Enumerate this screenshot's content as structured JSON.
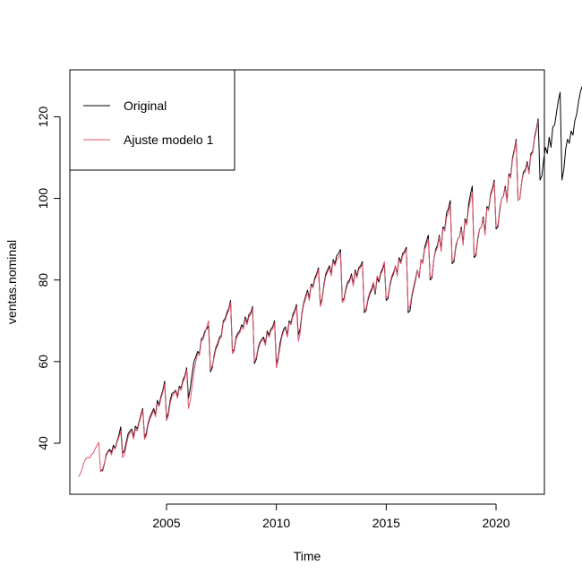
{
  "chart_data": {
    "type": "line",
    "title": "",
    "xlabel": "Time",
    "ylabel": "ventas.nominal",
    "xlim": [
      2000.6,
      2022.2
    ],
    "ylim": [
      27.5,
      131.5
    ],
    "x_ticks": [
      2005,
      2010,
      2015,
      2020
    ],
    "y_ticks": [
      40,
      60,
      80,
      100,
      120
    ],
    "grid": false,
    "legend_position": "top-left",
    "series": [
      {
        "name": "Original",
        "color": "#000000",
        "frequency": 12,
        "start": 2002.0,
        "values": [
          33.5,
          33.2,
          34.8,
          37.2,
          38.0,
          38.5,
          37.8,
          39.5,
          38.8,
          40.5,
          42.0,
          44.0,
          37.5,
          38.2,
          40.2,
          42.3,
          43.0,
          43.5,
          41.5,
          44.2,
          43.5,
          45.2,
          47.0,
          48.5,
          41.5,
          42.5,
          45.0,
          46.5,
          47.5,
          48.5,
          47.0,
          50.5,
          49.5,
          51.5,
          53.0,
          55.2,
          46.0,
          47.5,
          50.5,
          52.2,
          52.5,
          53.0,
          51.5,
          54.0,
          53.5,
          55.5,
          56.5,
          58.5,
          51.0,
          53.5,
          57.0,
          60.0,
          61.2,
          62.5,
          62.0,
          65.5,
          66.0,
          67.5,
          68.0,
          68.8,
          57.5,
          58.5,
          61.5,
          63.5,
          64.5,
          66.0,
          66.5,
          70.0,
          70.5,
          72.0,
          73.0,
          75.0,
          62.5,
          63.0,
          66.0,
          67.0,
          67.5,
          69.0,
          68.5,
          71.0,
          69.5,
          71.5,
          72.0,
          73.5,
          59.5,
          60.5,
          63.0,
          64.5,
          65.5,
          66.0,
          64.5,
          67.5,
          66.5,
          68.0,
          68.5,
          70.0,
          59.5,
          61.0,
          64.5,
          66.5,
          68.0,
          68.5,
          66.5,
          70.0,
          69.5,
          71.5,
          72.5,
          74.0,
          66.5,
          68.0,
          72.0,
          74.5,
          76.0,
          77.5,
          75.5,
          79.0,
          78.5,
          80.5,
          81.5,
          83.0,
          74.0,
          75.5,
          79.0,
          81.5,
          82.5,
          83.5,
          81.5,
          85.0,
          84.0,
          86.0,
          86.5,
          87.5,
          75.0,
          75.5,
          78.0,
          79.5,
          80.0,
          81.5,
          79.0,
          82.5,
          81.0,
          83.0,
          83.5,
          84.5,
          72.0,
          72.5,
          75.0,
          76.5,
          77.5,
          79.0,
          76.5,
          80.5,
          79.5,
          81.5,
          82.5,
          84.0,
          75.0,
          75.5,
          78.5,
          80.5,
          81.5,
          83.5,
          81.5,
          85.5,
          84.5,
          86.5,
          87.0,
          88.0,
          72.0,
          72.5,
          76.0,
          78.0,
          80.0,
          82.5,
          80.5,
          85.0,
          84.5,
          88.0,
          89.5,
          91.0,
          80.0,
          80.5,
          85.0,
          87.5,
          88.5,
          91.0,
          87.5,
          93.0,
          92.5,
          96.5,
          97.5,
          99.5,
          84.0,
          84.5,
          88.0,
          90.0,
          90.5,
          93.0,
          89.0,
          95.0,
          94.0,
          98.5,
          101.0,
          103.0,
          85.5,
          86.0,
          90.0,
          92.5,
          93.0,
          95.5,
          91.5,
          98.0,
          97.5,
          101.0,
          102.5,
          104.5,
          92.5,
          93.0,
          97.0,
          100.0,
          100.5,
          103.0,
          99.5,
          106.0,
          105.5,
          110.0,
          112.0,
          114.5,
          99.5,
          100.0,
          104.0,
          106.5,
          107.0,
          109.0,
          106.5,
          111.0,
          111.5,
          115.0,
          117.0,
          119.5,
          104.5,
          105.5,
          109.5,
          112.5,
          111.0,
          115.0,
          112.5,
          117.5,
          118.0,
          121.0,
          124.0,
          126.0,
          104.5,
          107.0,
          112.0,
          114.5,
          113.5,
          116.5,
          115.5,
          119.0,
          120.5,
          123.5,
          126.0,
          127.5
        ]
      },
      {
        "name": "Ajuste modelo 1",
        "color": "#DF536B",
        "frequency": 12,
        "start": 2001.0,
        "values": [
          31.8,
          32.6,
          33.8,
          35.4,
          36.2,
          36.6,
          36.4,
          37.2,
          37.6,
          38.6,
          39.4,
          40.2,
          33.0,
          33.6,
          35.0,
          36.8,
          37.8,
          38.2,
          37.2,
          39.0,
          38.6,
          40.2,
          41.5,
          43.0,
          36.5,
          37.2,
          39.5,
          41.5,
          42.5,
          43.0,
          41.0,
          43.5,
          43.0,
          44.8,
          46.5,
          48.0,
          41.0,
          41.8,
          44.5,
          46.0,
          47.0,
          48.0,
          46.5,
          49.8,
          49.0,
          51.0,
          52.5,
          54.5,
          45.5,
          46.8,
          49.8,
          51.5,
          52.0,
          52.8,
          51.0,
          53.5,
          53.0,
          55.0,
          56.0,
          58.0,
          48.5,
          50.5,
          54.0,
          57.5,
          60.0,
          62.0,
          61.5,
          65.0,
          65.5,
          67.0,
          68.5,
          70.0,
          58.0,
          59.0,
          61.0,
          63.0,
          64.0,
          65.5,
          66.0,
          69.5,
          70.0,
          71.5,
          72.5,
          74.5,
          62.0,
          62.5,
          65.5,
          66.5,
          67.0,
          68.5,
          68.0,
          70.5,
          69.0,
          71.0,
          71.5,
          73.0,
          60.0,
          61.0,
          63.5,
          65.0,
          65.0,
          65.5,
          64.0,
          67.0,
          66.0,
          67.5,
          68.0,
          69.5,
          58.5,
          60.5,
          63.5,
          66.0,
          67.5,
          68.0,
          66.0,
          69.5,
          69.0,
          71.0,
          72.0,
          73.5,
          65.0,
          67.0,
          71.5,
          74.0,
          75.5,
          77.0,
          75.0,
          78.5,
          78.0,
          80.0,
          81.0,
          82.5,
          73.5,
          75.0,
          78.5,
          81.0,
          82.0,
          83.0,
          81.0,
          84.5,
          83.5,
          85.0,
          85.5,
          86.5,
          74.5,
          75.0,
          77.5,
          79.0,
          79.5,
          81.0,
          78.5,
          82.0,
          80.5,
          82.5,
          83.0,
          84.0,
          72.5,
          73.0,
          75.5,
          77.0,
          78.0,
          79.5,
          77.0,
          81.0,
          80.0,
          82.0,
          83.0,
          84.5,
          75.5,
          76.0,
          79.0,
          81.0,
          82.0,
          83.5,
          81.0,
          85.0,
          84.0,
          86.0,
          86.5,
          87.5,
          73.0,
          73.5,
          76.5,
          78.5,
          80.5,
          82.5,
          80.5,
          85.0,
          84.0,
          87.5,
          88.5,
          90.0,
          80.5,
          81.0,
          85.0,
          87.0,
          88.0,
          90.5,
          87.0,
          92.5,
          92.0,
          95.5,
          96.5,
          98.5,
          84.5,
          85.0,
          88.5,
          90.0,
          90.5,
          92.5,
          88.5,
          94.5,
          93.5,
          97.5,
          99.5,
          101.5,
          86.0,
          86.5,
          90.5,
          92.5,
          93.0,
          95.0,
          91.0,
          97.5,
          97.0,
          100.5,
          102.0,
          104.0,
          93.0,
          93.5,
          97.5,
          100.0,
          100.5,
          102.5,
          99.0,
          105.5,
          105.0,
          109.5,
          111.5,
          114.0,
          99.5,
          100.0,
          104.0,
          106.0,
          106.5,
          108.5,
          106.0,
          110.5,
          111.0,
          114.5,
          116.5,
          119.0
        ]
      }
    ]
  }
}
